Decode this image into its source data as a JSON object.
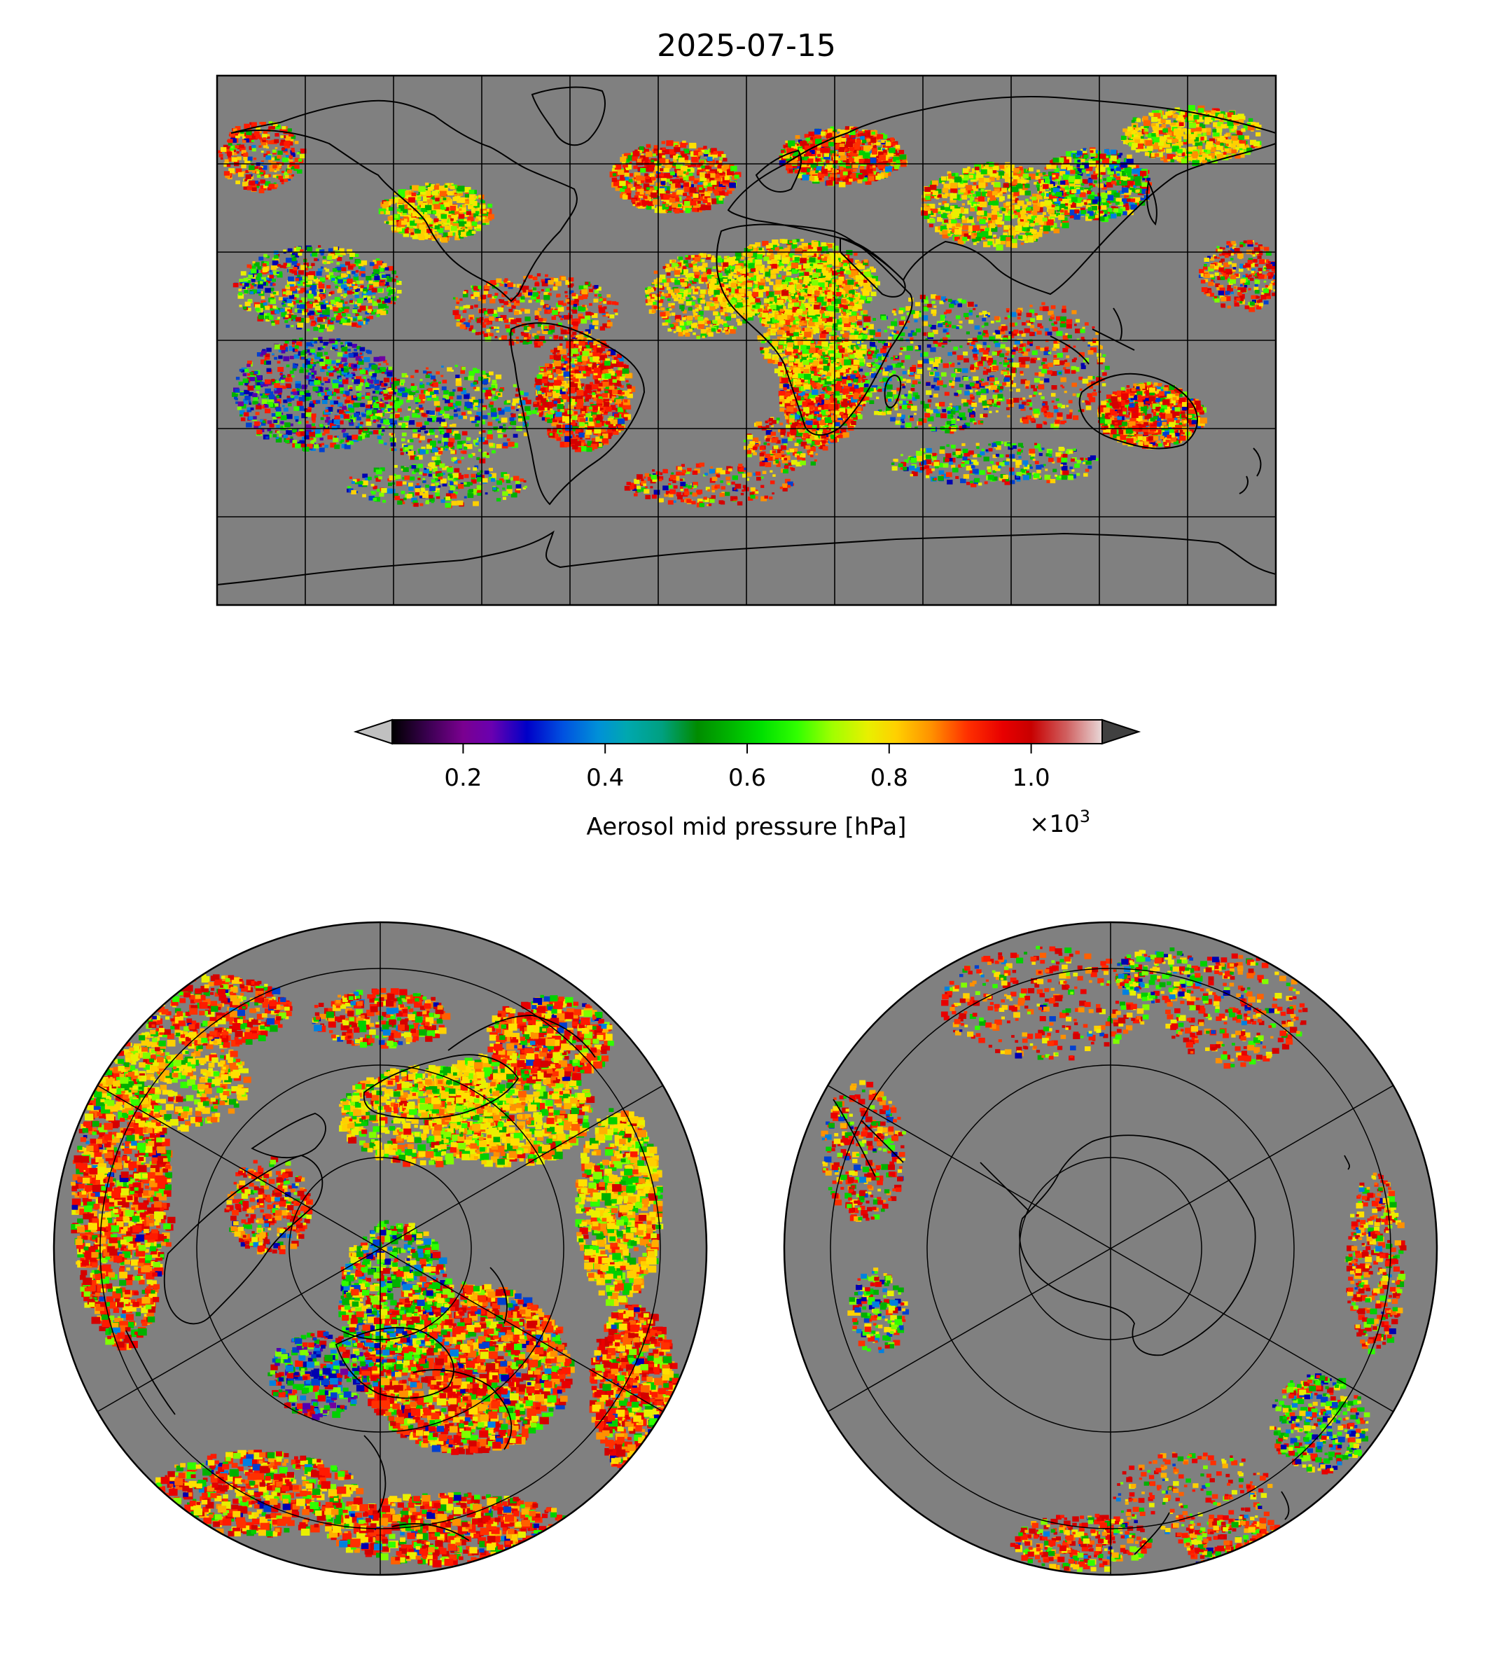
{
  "title": "2025-07-15",
  "colorbar": {
    "label": "Aerosol mid pressure [hPa]",
    "multiplier_base": "×10",
    "multiplier_exp": "3",
    "ticks": [
      "0.2",
      "0.4",
      "0.6",
      "0.8",
      "1.0"
    ],
    "tick_values": [
      0.2,
      0.4,
      0.6,
      0.8,
      1.0
    ],
    "vmin": 0.1,
    "vmax": 1.1,
    "colors": [
      "#000000",
      "#3a0050",
      "#7a0090",
      "#6a00b0",
      "#0000c8",
      "#0050e0",
      "#0090d8",
      "#00a8b0",
      "#00a080",
      "#008c00",
      "#00b800",
      "#00e000",
      "#30ff00",
      "#a0ff00",
      "#e8f000",
      "#ffd000",
      "#ff9000",
      "#ff3000",
      "#e80000",
      "#c80000",
      "#d06060",
      "#e8d8d8"
    ],
    "under_color": "#c0c0c0",
    "over_color": "#404040"
  },
  "maps": {
    "background": "#808080",
    "global_map": {
      "projection": "equirectangular"
    },
    "north_polar_map": {
      "projection": "north-polar-stereographic"
    },
    "south_polar_map": {
      "projection": "south-polar-stereographic"
    }
  }
}
